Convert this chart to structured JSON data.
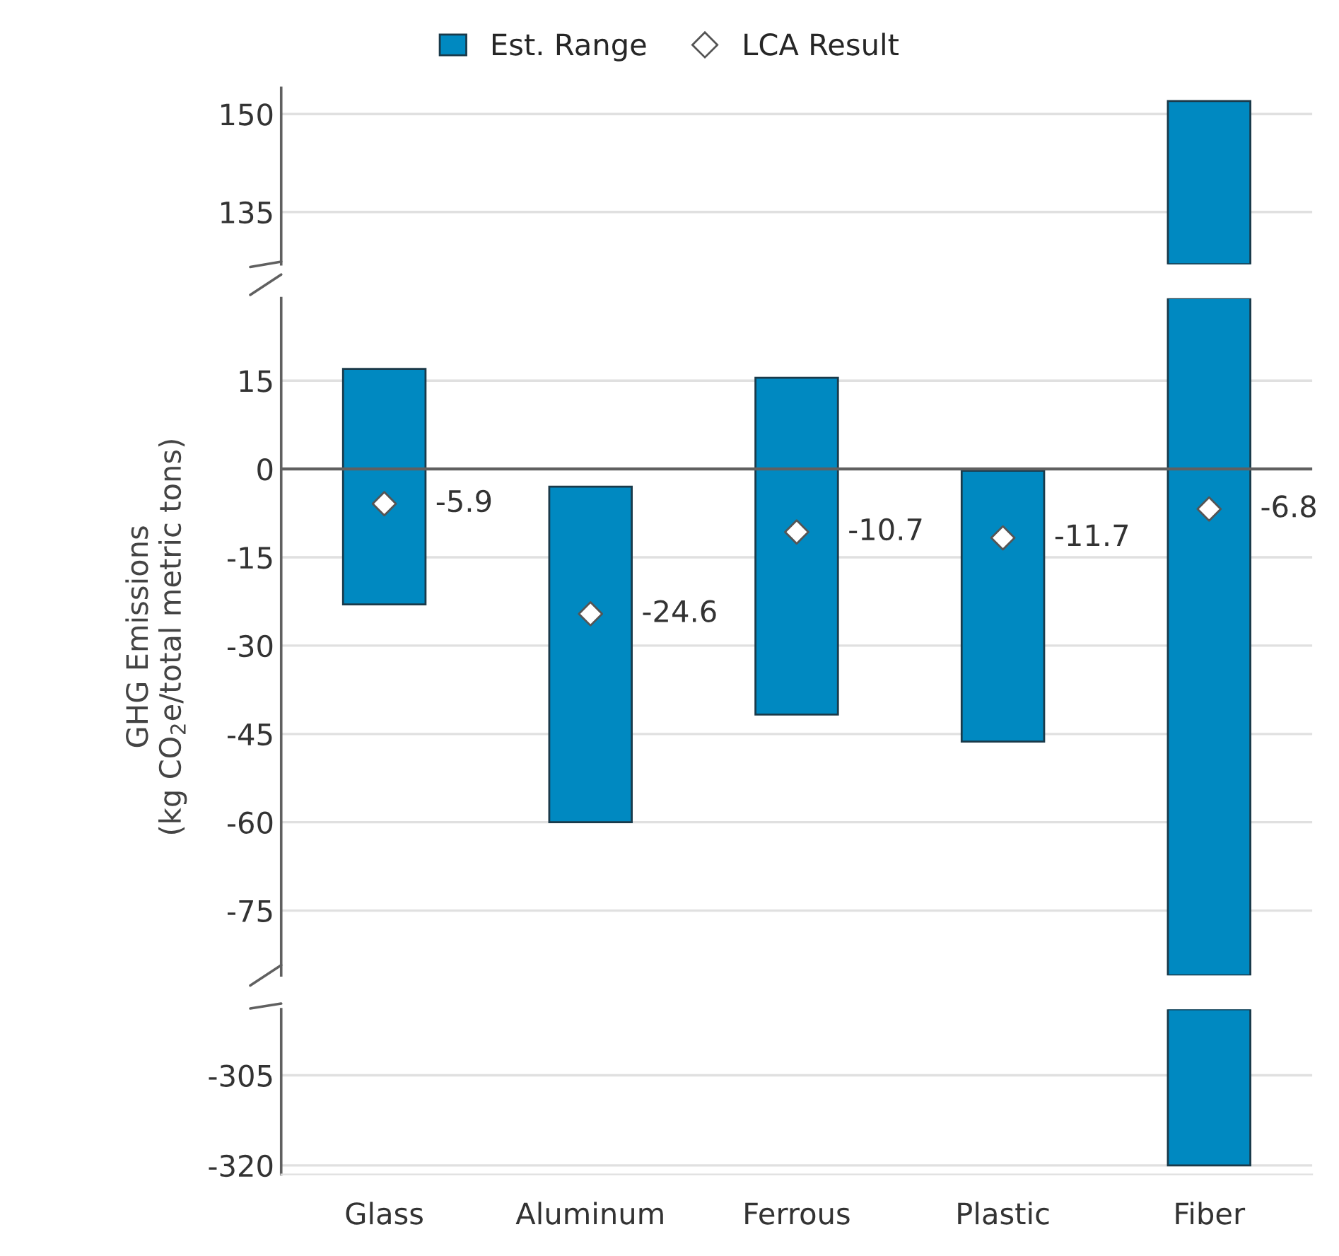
{
  "chart_data": [
    {
      "type": "bar",
      "ylim": [
        127,
        154
      ],
      "yticks": [
        135,
        150
      ],
      "grid": "y",
      "tick_labels": "y",
      "series": [
        {
          "color": "#0089c1",
          "base": [
            null,
            null,
            null,
            null,
            127
          ],
          "values": [
            null,
            null,
            null,
            null,
            25
          ]
        }
      ]
    },
    {
      "type": "bar",
      "ylim": [
        -86,
        29
      ],
      "yticks": [
        -75,
        -60,
        -45,
        -30,
        -15,
        0,
        15
      ],
      "grid": "y",
      "tick_labels": "y",
      "legend": "top",
      "ylabel": "GHG Emissions\n(kg CO$_{2}$e/total metric tons)",
      "ref_lines": [
        {
          "axis": "y",
          "value": 0,
          "color": "#606060"
        }
      ],
      "series": [
        {
          "name": "Est. Range",
          "color": "#0089c1",
          "base": [
            -23,
            -60,
            -41.7,
            -46.3,
            -86
          ],
          "values": [
            40,
            57,
            57.2,
            46,
            115
          ]
        },
        {
          "type": "scatter",
          "name": "LCA Result",
          "color": "#ffffff",
          "marker": "diamond",
          "values": [
            -5.9,
            -24.6,
            -10.7,
            -11.7,
            -6.8
          ],
          "value_labels": [
            "-5.9",
            "-24.6",
            "-10.7",
            "-11.7",
            "-6.8"
          ]
        }
      ]
    },
    {
      "type": "bar",
      "categories": [
        "Glass",
        "Aluminum",
        "Ferrous",
        "Plastic",
        "Fiber"
      ],
      "ylim": [
        -321.5,
        -294
      ],
      "yticks": [
        -320,
        -305
      ],
      "grid": "y",
      "series": [
        {
          "color": "#0089c1",
          "base": [
            null,
            null,
            null,
            null,
            -320
          ],
          "values": [
            null,
            null,
            null,
            null,
            26
          ]
        }
      ]
    }
  ]
}
